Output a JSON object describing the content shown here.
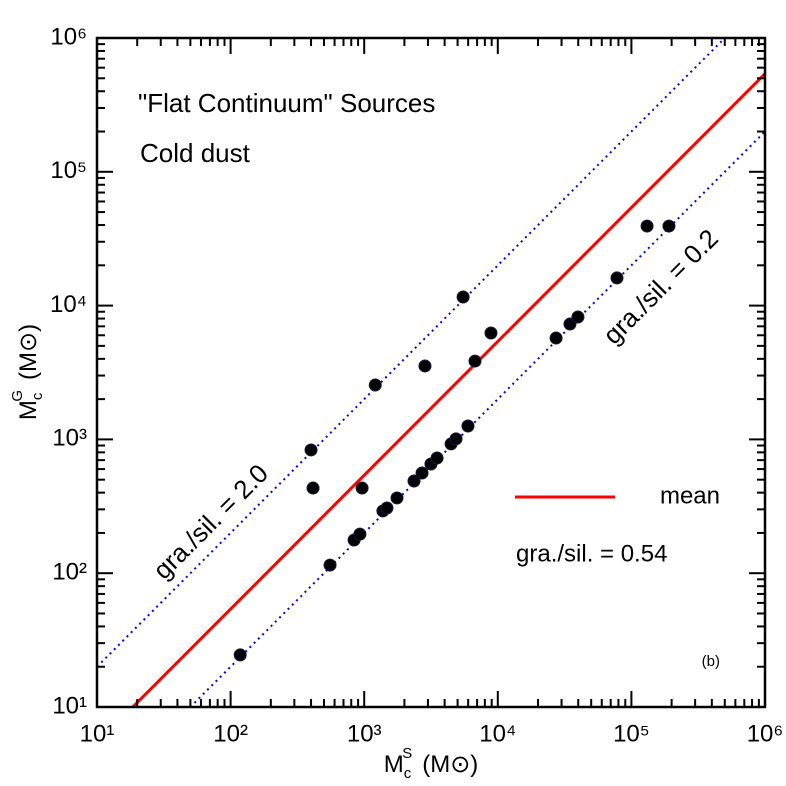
{
  "chart_data": {
    "type": "scatter",
    "annotations": [
      "\"Flat Continuum\" Sources",
      "Cold dust",
      "(b)"
    ],
    "xlabel": {
      "base": "M",
      "sub": "c",
      "sup": "S",
      "unit": "(M⊙)"
    },
    "ylabel": {
      "base": "M",
      "sub": "c",
      "sup": "G",
      "unit": "(M⊙)"
    },
    "log_x": true,
    "log_y": true,
    "xlim": [
      10,
      1000000
    ],
    "ylim": [
      10,
      1000000
    ],
    "xticks": [
      {
        "value": 10,
        "label": "10¹"
      },
      {
        "value": 100,
        "label": "10²"
      },
      {
        "value": 1000,
        "label": "10³"
      },
      {
        "value": 10000,
        "label": "10⁴"
      },
      {
        "value": 100000,
        "label": "10⁵"
      },
      {
        "value": 1000000,
        "label": "10⁶"
      }
    ],
    "yticks": [
      {
        "value": 10,
        "label": "10¹"
      },
      {
        "value": 100,
        "label": "10²"
      },
      {
        "value": 1000,
        "label": "10³"
      },
      {
        "value": 10000,
        "label": "10⁴"
      },
      {
        "value": 100000,
        "label": "10⁵"
      },
      {
        "value": 1000000,
        "label": "10⁶"
      }
    ],
    "series": [
      {
        "color": "#000000",
        "x": [
          118,
          555,
          840,
          929,
          1380,
          1480,
          1760,
          2360,
          2710,
          3160,
          3510,
          4470,
          4870,
          5980,
          6750,
          8890,
          27300,
          34700,
          39800,
          78000,
          131000,
          191000,
          400,
          414,
          964,
          1210,
          2850,
          5500
        ],
        "values": [
          24.5,
          115,
          177,
          196,
          292,
          307,
          365,
          489,
          561,
          655,
          726,
          925,
          1010,
          1260,
          3850,
          6240,
          5720,
          7280,
          8220,
          16100,
          39300,
          39300,
          834,
          433,
          433,
          2550,
          3540,
          11600
        ]
      }
    ],
    "lines": [
      {
        "ratio": 2.0,
        "label": "gra./sil. = 2.0",
        "color": "#0000ff",
        "dotted": true
      },
      {
        "ratio": 0.2,
        "label": "gra./sil. = 0.2",
        "color": "#0000ff",
        "dotted": true
      },
      {
        "ratio": 0.54,
        "name": "mean",
        "label": "gra./sil. = 0.54",
        "color": "#ff0000",
        "dotted": false
      }
    ]
  }
}
